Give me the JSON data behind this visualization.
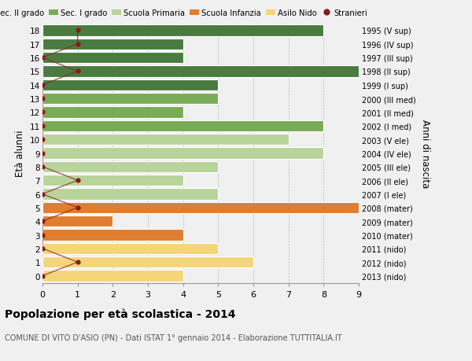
{
  "ages": [
    18,
    17,
    16,
    15,
    14,
    13,
    12,
    11,
    10,
    9,
    8,
    7,
    6,
    5,
    4,
    3,
    2,
    1,
    0
  ],
  "right_labels": [
    "1995 (V sup)",
    "1996 (IV sup)",
    "1997 (III sup)",
    "1998 (II sup)",
    "1999 (I sup)",
    "2000 (III med)",
    "2001 (II med)",
    "2002 (I med)",
    "2003 (V ele)",
    "2004 (IV ele)",
    "2005 (III ele)",
    "2006 (II ele)",
    "2007 (I ele)",
    "2008 (mater)",
    "2009 (mater)",
    "2010 (mater)",
    "2011 (nido)",
    "2012 (nido)",
    "2013 (nido)"
  ],
  "bar_values": [
    8,
    4,
    4,
    9,
    5,
    5,
    4,
    8,
    7,
    8,
    5,
    4,
    5,
    9,
    2,
    4,
    5,
    6,
    4
  ],
  "bar_colors": [
    "#4a7c41",
    "#4a7c41",
    "#4a7c41",
    "#4a7c41",
    "#4a7c41",
    "#7aab56",
    "#7aab56",
    "#7aab56",
    "#b8d49a",
    "#b8d49a",
    "#b8d49a",
    "#b8d49a",
    "#b8d49a",
    "#e07d2e",
    "#e07d2e",
    "#e07d2e",
    "#f5d57a",
    "#f5d57a",
    "#f5d57a"
  ],
  "stranieri_values": [
    1,
    1,
    0,
    1,
    0,
    0,
    0,
    0,
    0,
    0,
    0,
    1,
    0,
    1,
    0,
    0,
    0,
    1,
    0
  ],
  "legend_labels": [
    "Sec. II grado",
    "Sec. I grado",
    "Scuola Primaria",
    "Scuola Infanzia",
    "Asilo Nido",
    "Stranieri"
  ],
  "legend_colors": [
    "#4a7c41",
    "#7aab56",
    "#b8d49a",
    "#e07d2e",
    "#f5d57a",
    "#8b1a1a"
  ],
  "title": "Popolazione per età scolastica - 2014",
  "subtitle": "COMUNE DI VITO D'ASIO (PN) - Dati ISTAT 1° gennaio 2014 - Elaborazione TUTTITALIA.IT",
  "ylabel": "Età alunni",
  "right_ylabel": "Anni di nascita",
  "xlim": [
    0,
    9
  ],
  "xticks": [
    0,
    1,
    2,
    3,
    4,
    5,
    6,
    7,
    8,
    9
  ],
  "background_color": "#f0f0f0",
  "bar_height": 0.82
}
